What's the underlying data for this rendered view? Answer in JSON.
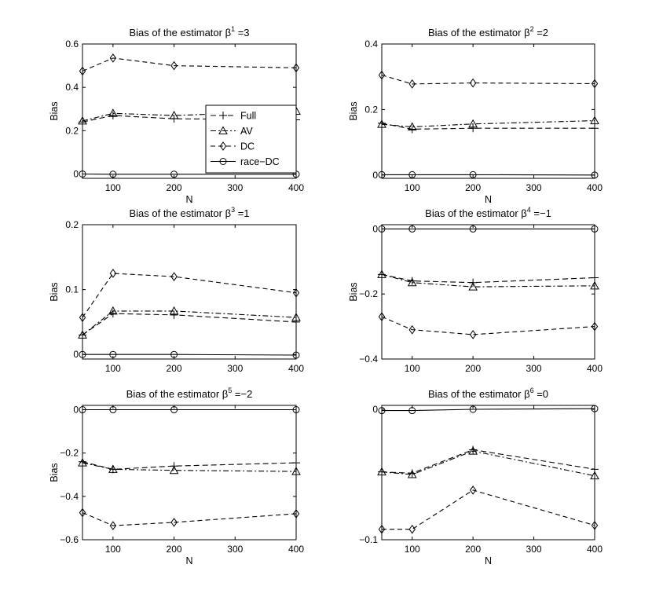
{
  "chart_data": [
    {
      "type": "line",
      "title_prefix": "Bias of the estimator ",
      "title_sym": "β",
      "title_sup": "1",
      "title_suffix": " =3",
      "xlabel": "N",
      "ylabel": "Bias",
      "xlim": [
        50,
        400
      ],
      "ylim": [
        -0.02,
        0.6
      ],
      "xticks": [
        100,
        200,
        300,
        400
      ],
      "yticks": [
        0,
        0.2,
        0.4,
        0.6
      ],
      "ytick_labels": [
        "0",
        "0.2",
        "0.4",
        "0.6"
      ],
      "x": [
        50,
        100,
        200,
        400
      ],
      "series": [
        {
          "name": "Full",
          "values": [
            0.24,
            0.27,
            0.255,
            0.25
          ]
        },
        {
          "name": "AV",
          "values": [
            0.245,
            0.28,
            0.27,
            0.29
          ]
        },
        {
          "name": "DC",
          "values": [
            0.475,
            0.535,
            0.5,
            0.49
          ]
        },
        {
          "name": "race-DC",
          "values": [
            0.0,
            -0.001,
            -0.001,
            -0.001
          ]
        }
      ],
      "legend": {
        "position": "inside-right",
        "entries": [
          "Full",
          "AV",
          "DC",
          "race−DC"
        ]
      }
    },
    {
      "type": "line",
      "title_prefix": "Bias of the estimator ",
      "title_sym": "β",
      "title_sup": "2",
      "title_suffix": " =2",
      "xlabel": "N",
      "ylabel": "Bias",
      "xlim": [
        50,
        400
      ],
      "ylim": [
        -0.01,
        0.4
      ],
      "xticks": [
        100,
        200,
        300,
        400
      ],
      "yticks": [
        0,
        0.2,
        0.4
      ],
      "ytick_labels": [
        "0",
        "0.2",
        "0.4"
      ],
      "x": [
        50,
        100,
        200,
        400
      ],
      "series": [
        {
          "name": "Full",
          "values": [
            0.158,
            0.14,
            0.143,
            0.143
          ]
        },
        {
          "name": "AV",
          "values": [
            0.155,
            0.147,
            0.156,
            0.166
          ]
        },
        {
          "name": "DC",
          "values": [
            0.305,
            0.278,
            0.281,
            0.279
          ]
        },
        {
          "name": "race-DC",
          "values": [
            0.001,
            0.001,
            0.001,
            0.0
          ]
        }
      ]
    },
    {
      "type": "line",
      "title_prefix": "Bias of the estimator ",
      "title_sym": "β",
      "title_sup": "3",
      "title_suffix": " =1",
      "xlabel": "",
      "ylabel": "Bias",
      "xlim": [
        50,
        400
      ],
      "ylim": [
        -0.007,
        0.2
      ],
      "xticks": [
        100,
        200,
        300,
        400
      ],
      "yticks": [
        0,
        0.1,
        0.2
      ],
      "ytick_labels": [
        "0",
        "0.1",
        "0.2"
      ],
      "x": [
        50,
        100,
        200,
        400
      ],
      "series": [
        {
          "name": "Full",
          "values": [
            0.03,
            0.063,
            0.061,
            0.05
          ]
        },
        {
          "name": "AV",
          "values": [
            0.03,
            0.067,
            0.067,
            0.057
          ]
        },
        {
          "name": "DC",
          "values": [
            0.057,
            0.125,
            0.12,
            0.095
          ]
        },
        {
          "name": "race-DC",
          "values": [
            0.0,
            0.0,
            0.0,
            -0.001
          ]
        }
      ]
    },
    {
      "type": "line",
      "title_prefix": "Bias of the estimator ",
      "title_sym": "β",
      "title_sup": "4",
      "title_suffix": " =−1",
      "xlabel": "",
      "ylabel": "Bias",
      "xlim": [
        50,
        400
      ],
      "ylim": [
        -0.4,
        0.013
      ],
      "xticks": [
        100,
        200,
        300,
        400
      ],
      "yticks": [
        -0.4,
        -0.2,
        0
      ],
      "ytick_labels": [
        "−0.4",
        "−0.2",
        "0"
      ],
      "x": [
        50,
        100,
        200,
        400
      ],
      "series": [
        {
          "name": "Full",
          "values": [
            -0.14,
            -0.16,
            -0.165,
            -0.15
          ]
        },
        {
          "name": "AV",
          "values": [
            -0.14,
            -0.165,
            -0.178,
            -0.175
          ]
        },
        {
          "name": "DC",
          "values": [
            -0.27,
            -0.31,
            -0.325,
            -0.3
          ]
        },
        {
          "name": "race-DC",
          "values": [
            0.0,
            0.0,
            0.0,
            0.0
          ]
        }
      ]
    },
    {
      "type": "line",
      "title_prefix": "Bias of the estimator ",
      "title_sym": "β",
      "title_sup": "5",
      "title_suffix": " =−2",
      "xlabel": "N",
      "ylabel": "Bias",
      "xlim": [
        50,
        400
      ],
      "ylim": [
        -0.6,
        0.02
      ],
      "xticks": [
        100,
        200,
        300,
        400
      ],
      "yticks": [
        -0.6,
        -0.4,
        -0.2,
        0
      ],
      "ytick_labels": [
        "−0.6",
        "−0.4",
        "−0.2",
        "0"
      ],
      "x": [
        50,
        100,
        200,
        400
      ],
      "series": [
        {
          "name": "Full",
          "values": [
            -0.24,
            -0.275,
            -0.26,
            -0.245
          ]
        },
        {
          "name": "AV",
          "values": [
            -0.245,
            -0.275,
            -0.28,
            -0.285
          ]
        },
        {
          "name": "DC",
          "values": [
            -0.475,
            -0.535,
            -0.52,
            -0.48
          ]
        },
        {
          "name": "race-DC",
          "values": [
            0.0,
            0.0,
            0.0,
            0.0
          ]
        }
      ]
    },
    {
      "type": "line",
      "title_prefix": "Bias of the estimator ",
      "title_sym": "β",
      "title_sup": "6",
      "title_suffix": " =0",
      "xlabel": "N",
      "ylabel": "",
      "xlim": [
        50,
        400
      ],
      "ylim": [
        -0.1,
        0.003
      ],
      "xticks": [
        100,
        200,
        300,
        400
      ],
      "yticks": [
        -0.1,
        0
      ],
      "ytick_labels": [
        "−0.1",
        "0"
      ],
      "x": [
        50,
        100,
        200,
        400
      ],
      "series": [
        {
          "name": "Full",
          "values": [
            -0.048,
            -0.049,
            -0.031,
            -0.046
          ]
        },
        {
          "name": "AV",
          "values": [
            -0.048,
            -0.05,
            -0.032,
            -0.051
          ]
        },
        {
          "name": "DC",
          "values": [
            -0.092,
            -0.092,
            -0.062,
            -0.089
          ]
        },
        {
          "name": "race-DC",
          "values": [
            -0.001,
            -0.001,
            0.0,
            0.0005
          ]
        }
      ]
    }
  ]
}
